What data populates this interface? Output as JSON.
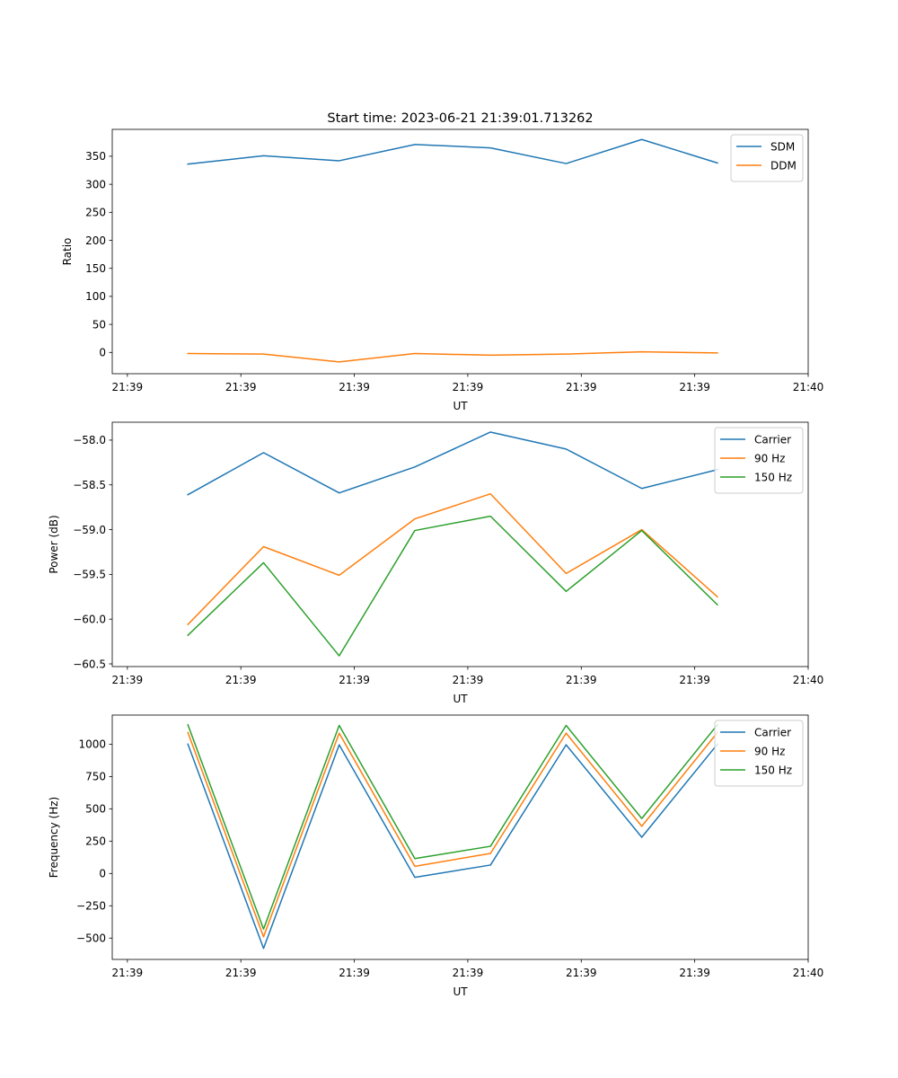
{
  "figure_title": "Start time: 2023-06-21 21:39:01.713262",
  "colors": {
    "blue": "#1f77b4",
    "orange": "#ff7f0e",
    "green": "#2ca02c"
  },
  "chart_data": [
    {
      "type": "line",
      "title": "Start time: 2023-06-21 21:39:01.713262",
      "xlabel": "UT",
      "ylabel": "Ratio",
      "x_tick_labels": [
        "21:39",
        "21:39",
        "21:39",
        "21:39",
        "21:39",
        "21:39",
        "21:40"
      ],
      "x": [
        1,
        2,
        3,
        4,
        5,
        6,
        7,
        8
      ],
      "xlim": [
        0,
        9.2
      ],
      "x_ticks": [
        0.2,
        1.7,
        3.2,
        4.7,
        6.2,
        7.7,
        9.2
      ],
      "ylim": [
        -38,
        398
      ],
      "y_ticks": [
        0,
        50,
        100,
        150,
        200,
        250,
        300,
        350
      ],
      "y_tick_labels": [
        "0",
        "50",
        "100",
        "150",
        "200",
        "250",
        "300",
        "350"
      ],
      "legend": "top-right",
      "grid": false,
      "series": [
        {
          "name": "SDM",
          "color": "#1f77b4",
          "values": [
            336,
            351,
            342,
            371,
            365,
            337,
            380,
            338
          ]
        },
        {
          "name": "DDM",
          "color": "#ff7f0e",
          "values": [
            -2,
            -3,
            -17,
            -2,
            -5,
            -3,
            1,
            -1
          ]
        }
      ]
    },
    {
      "type": "line",
      "title": "",
      "xlabel": "UT",
      "ylabel": "Power (dB)",
      "x_tick_labels": [
        "21:39",
        "21:39",
        "21:39",
        "21:39",
        "21:39",
        "21:39",
        "21:40"
      ],
      "x": [
        1,
        2,
        3,
        4,
        5,
        6,
        7,
        8
      ],
      "xlim": [
        0,
        9.2
      ],
      "x_ticks": [
        0.2,
        1.7,
        3.2,
        4.7,
        6.2,
        7.7,
        9.2
      ],
      "ylim": [
        -60.53,
        -57.8
      ],
      "y_ticks": [
        -60.5,
        -60.0,
        -59.5,
        -59.0,
        -58.5,
        -58.0
      ],
      "y_tick_labels": [
        "−60.5",
        "−60.0",
        "−59.5",
        "−59.0",
        "−58.5",
        "−58.0"
      ],
      "legend": "top-right",
      "grid": false,
      "series": [
        {
          "name": "Carrier",
          "color": "#1f77b4",
          "values": [
            -58.61,
            -58.14,
            -58.59,
            -58.3,
            -57.91,
            -58.1,
            -58.54,
            -58.33
          ]
        },
        {
          "name": "90 Hz",
          "color": "#ff7f0e",
          "values": [
            -60.06,
            -59.19,
            -59.51,
            -58.88,
            -58.6,
            -59.49,
            -59.0,
            -59.75
          ]
        },
        {
          "name": "150 Hz",
          "color": "#2ca02c",
          "values": [
            -60.18,
            -59.37,
            -60.41,
            -59.01,
            -58.85,
            -59.69,
            -59.01,
            -59.84
          ]
        }
      ]
    },
    {
      "type": "line",
      "title": "",
      "xlabel": "UT",
      "ylabel": "Frequency (Hz)",
      "x_tick_labels": [
        "21:39",
        "21:39",
        "21:39",
        "21:39",
        "21:39",
        "21:39",
        "21:40"
      ],
      "x": [
        1,
        2,
        3,
        4,
        5,
        6,
        7,
        8
      ],
      "xlim": [
        0,
        9.2
      ],
      "x_ticks": [
        0.2,
        1.7,
        3.2,
        4.7,
        6.2,
        7.7,
        9.2
      ],
      "ylim": [
        -665,
        1225
      ],
      "y_ticks": [
        -500,
        -250,
        0,
        250,
        500,
        750,
        1000
      ],
      "y_tick_labels": [
        "−500",
        "−250",
        "0",
        "250",
        "500",
        "750",
        "1000"
      ],
      "legend": "top-right",
      "grid": false,
      "series": [
        {
          "name": "Carrier",
          "color": "#1f77b4",
          "values": [
            1000,
            -580,
            995,
            -30,
            65,
            995,
            280,
            1000
          ]
        },
        {
          "name": "90 Hz",
          "color": "#ff7f0e",
          "values": [
            1090,
            -490,
            1085,
            55,
            155,
            1085,
            365,
            1090
          ]
        },
        {
          "name": "150 Hz",
          "color": "#2ca02c",
          "values": [
            1150,
            -430,
            1145,
            115,
            210,
            1145,
            425,
            1150
          ]
        }
      ]
    }
  ]
}
